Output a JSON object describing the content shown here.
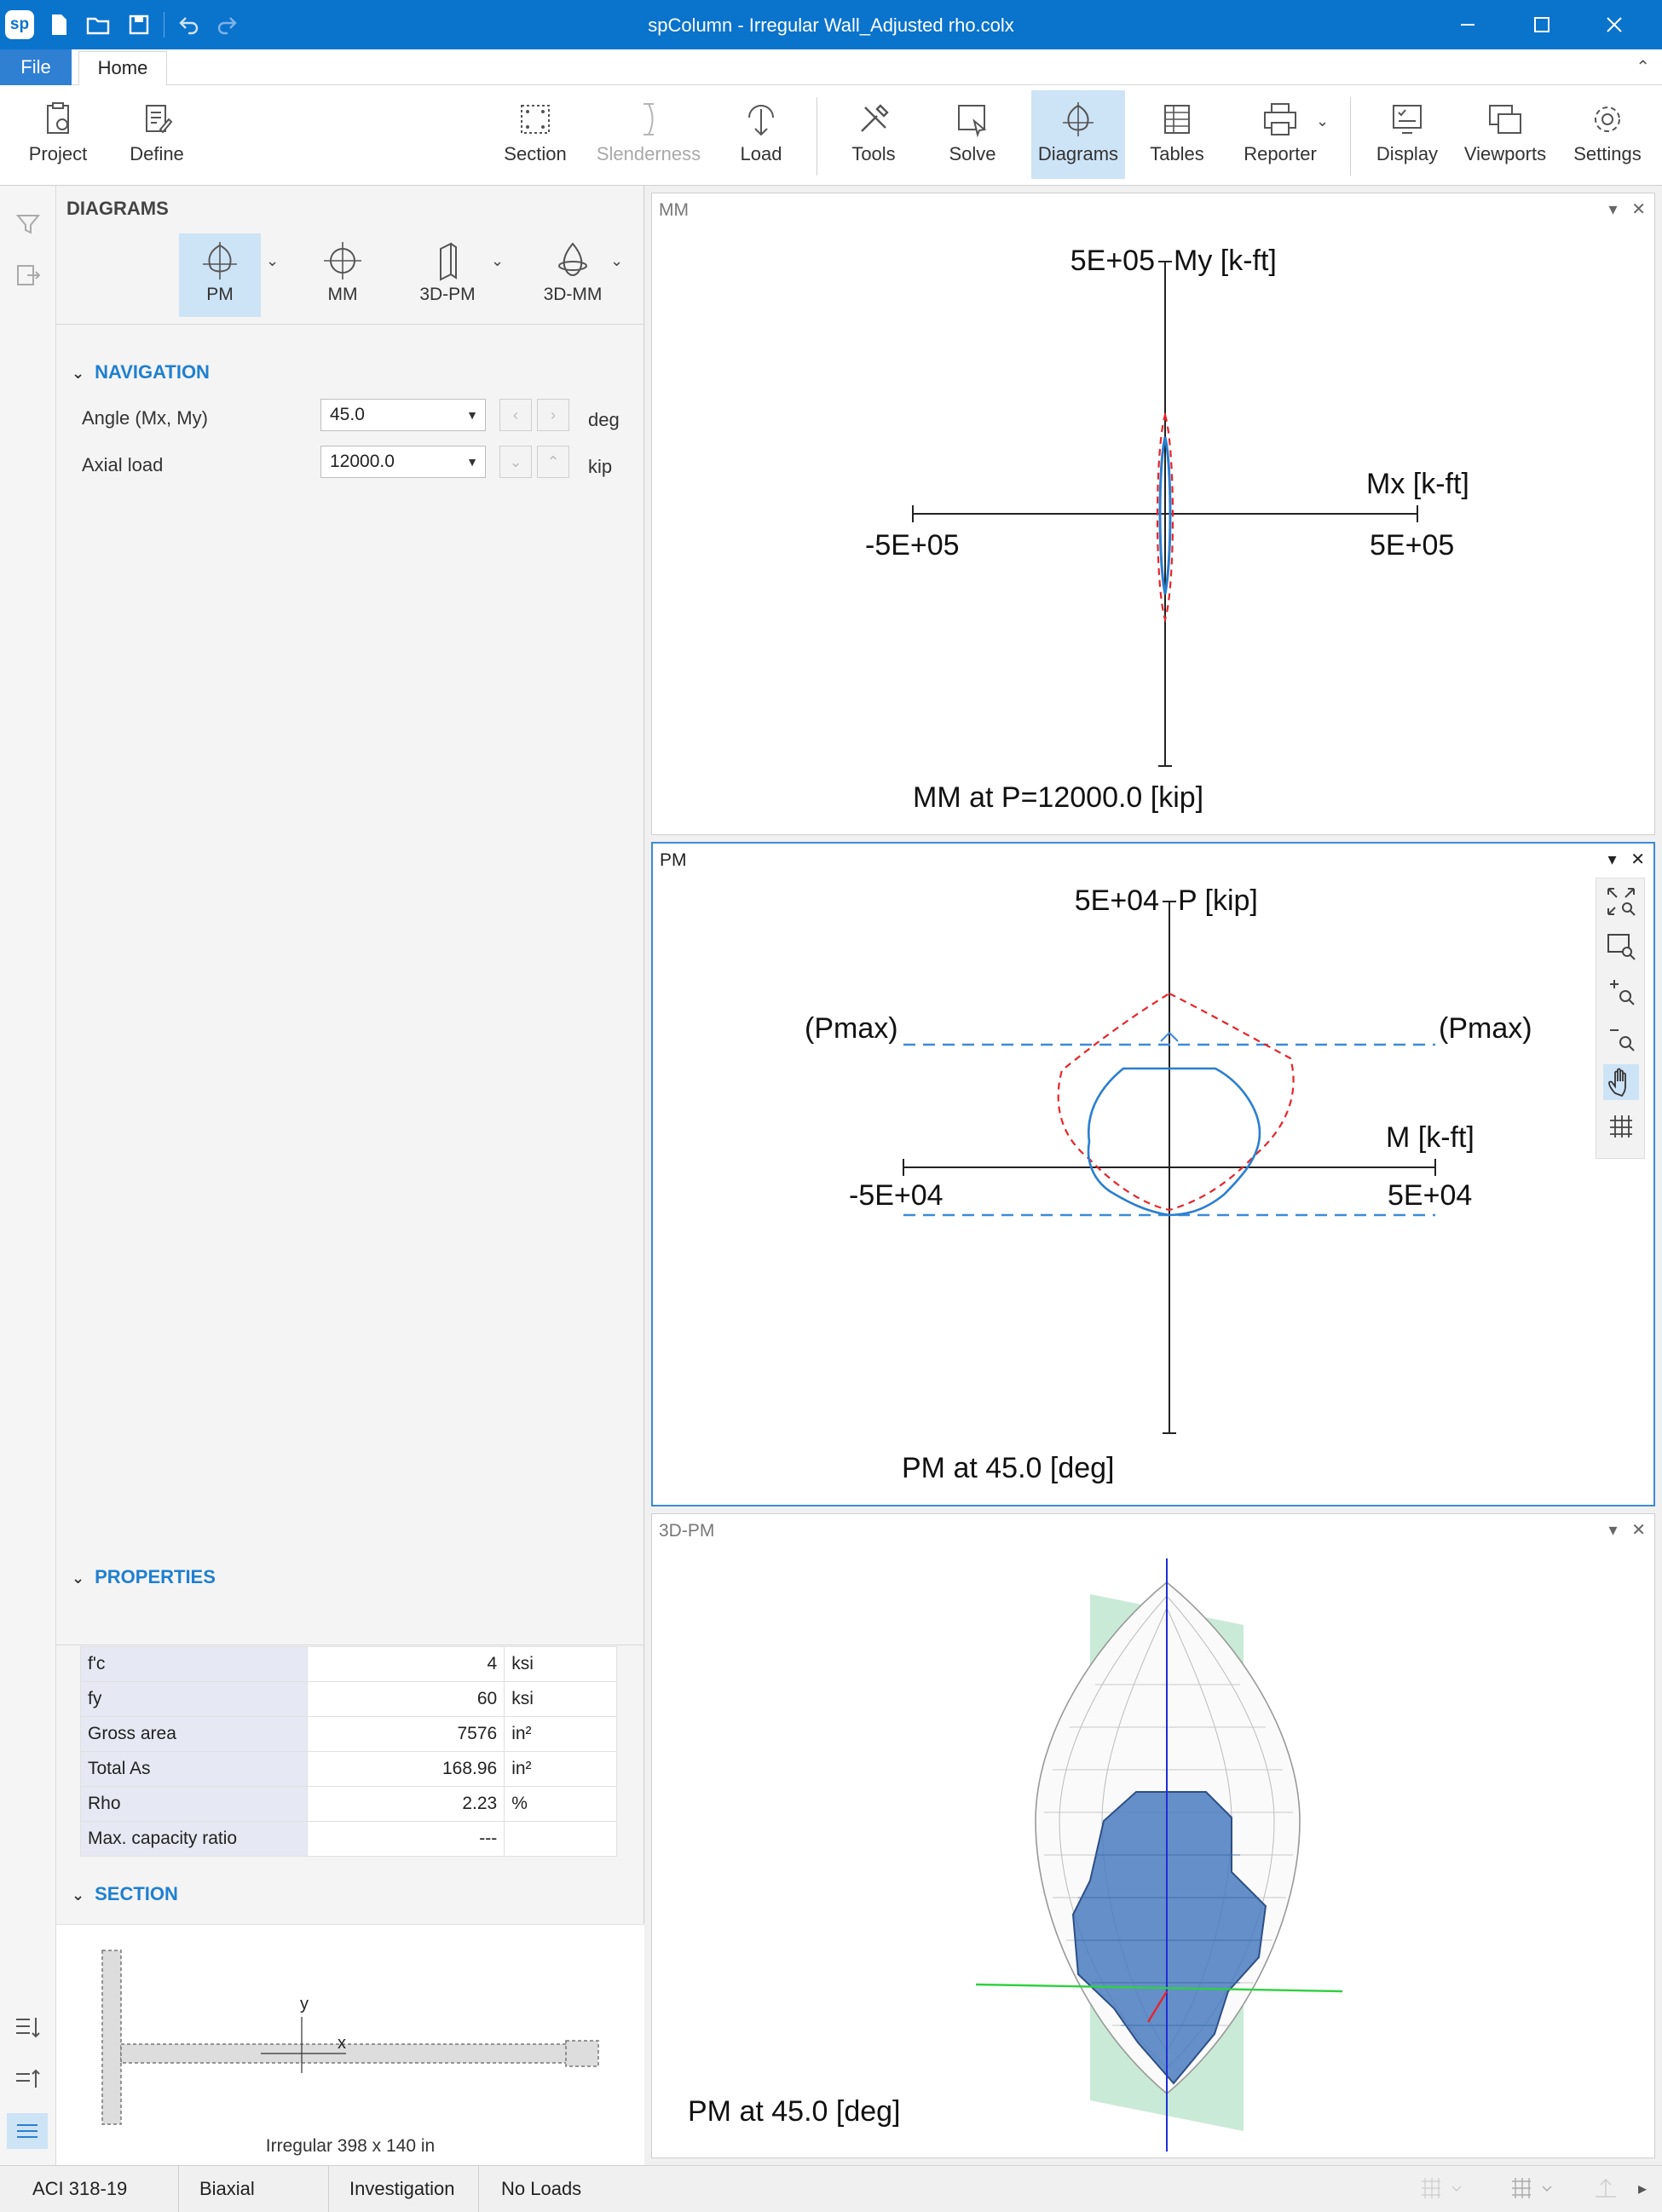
{
  "window": {
    "title": "spColumn - Irregular Wall_Adjusted rho.colx",
    "logo": "sp"
  },
  "tabs": {
    "file": "File",
    "home": "Home"
  },
  "ribbon": {
    "project": "Project",
    "define": "Define",
    "section": "Section",
    "slenderness": "Slenderness",
    "load": "Load",
    "tools": "Tools",
    "solve": "Solve",
    "diagrams": "Diagrams",
    "tables": "Tables",
    "reporter": "Reporter",
    "display": "Display",
    "viewports": "Viewports",
    "settings": "Settings"
  },
  "diagrams_panel": {
    "title": "DIAGRAMS",
    "buttons": {
      "pm": "PM",
      "mm": "MM",
      "pm3d": "3D-PM",
      "mm3d": "3D-MM"
    }
  },
  "navigation": {
    "header": "NAVIGATION",
    "angle_label": "Angle (Mx, My)",
    "angle_value": "45.0",
    "angle_unit": "deg",
    "axial_label": "Axial load",
    "axial_value": "12000.0",
    "axial_unit": "kip"
  },
  "properties": {
    "header": "PROPERTIES",
    "rows": [
      {
        "name": "f'c",
        "value": "4",
        "unit": "ksi"
      },
      {
        "name": "fy",
        "value": "60",
        "unit": "ksi"
      },
      {
        "name": "Gross area",
        "value": "7576",
        "unit": "in²"
      },
      {
        "name": "Total As",
        "value": "168.96",
        "unit": "in²"
      },
      {
        "name": "Rho",
        "value": "2.23",
        "unit": "%"
      },
      {
        "name": "Max. capacity ratio",
        "value": "---",
        "unit": ""
      }
    ]
  },
  "section": {
    "header": "SECTION",
    "axis_x": "x",
    "axis_y": "y",
    "caption": "Irregular 398 x 140 in"
  },
  "mm_pane": {
    "title": "MM",
    "y_axis_label": "My [k-ft]",
    "y_top": "5E+05",
    "x_axis_label": "Mx [k-ft]",
    "x_left": "-5E+05",
    "x_right": "5E+05",
    "caption": "MM at P=12000.0 [kip]"
  },
  "pm_pane": {
    "title": "PM",
    "y_axis_label": "P [kip]",
    "y_top": "5E+04",
    "x_axis_label": "M [k-ft]",
    "x_left": "-5E+04",
    "x_right": "5E+04",
    "pmax_left": "(Pmax)",
    "pmax_right": "(Pmax)",
    "caption": "PM at 45.0 [deg]"
  },
  "pm3d_pane": {
    "title": "3D-PM",
    "caption": "PM at 45.0 [deg]"
  },
  "statusbar": {
    "code": "ACI 318-19",
    "mode": "Biaxial",
    "run": "Investigation",
    "loads": "No Loads"
  },
  "colors": {
    "accent": "#0a73cc",
    "active": "#cde3f6",
    "capacity_blue": "#2a7fd0",
    "factored_red": "#e8242a"
  }
}
